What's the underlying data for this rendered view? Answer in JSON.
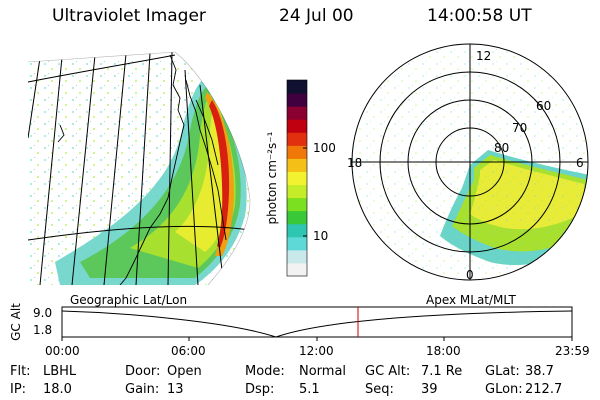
{
  "header": {
    "instrument": "Ultraviolet Imager",
    "date": "24 Jul 00",
    "time": "14:00:58 UT"
  },
  "colorbar": {
    "unit_label": "photon cm⁻²s⁻¹",
    "ticks": [
      {
        "label": "100",
        "value": 100
      },
      {
        "label": "10",
        "value": 10
      }
    ],
    "colors": [
      "#f2f2f2",
      "#c8e8ea",
      "#5fd8d8",
      "#2ec6b0",
      "#38c838",
      "#7ae020",
      "#c4ec28",
      "#f2f230",
      "#f4c018",
      "#f07808",
      "#e03010",
      "#c00010",
      "#8a0030",
      "#400040",
      "#101030"
    ]
  },
  "geo_map": {
    "caption": "Geographic Lat/Lon"
  },
  "polar_map": {
    "caption": "Apex MLat/MLT",
    "mlt_labels": [
      {
        "label": "12",
        "pos": "top"
      },
      {
        "label": "18",
        "pos": "left"
      },
      {
        "label": "6",
        "pos": "right"
      },
      {
        "label": "0",
        "pos": "bottom"
      }
    ],
    "lat_labels": [
      "60",
      "70",
      "80"
    ]
  },
  "timeline": {
    "ylabel": "GC Alt",
    "y_ticks": [
      "9.0",
      "1.8"
    ],
    "x_ticks": [
      "00:00",
      "06:00",
      "12:00",
      "18:00",
      "23:59"
    ],
    "current_time": "14:00:58",
    "marker_color": "#cc0000"
  },
  "info": [
    [
      {
        "label": "Flt:",
        "value": "LBHL"
      },
      {
        "label": "Door:",
        "value": "Open"
      },
      {
        "label": "Mode:",
        "value": "Normal"
      },
      {
        "label": "GC Alt:",
        "value": "7.1 Re"
      },
      {
        "label": "GLat:",
        "value": "38.7"
      }
    ],
    [
      {
        "label": "IP:",
        "value": "18.0"
      },
      {
        "label": "Gain:",
        "value": "13"
      },
      {
        "label": "Dsp:",
        "value": "5.1"
      },
      {
        "label": "Seq:",
        "value": "39"
      },
      {
        "label": "GLon:",
        "value": "212.7"
      }
    ]
  ]
}
